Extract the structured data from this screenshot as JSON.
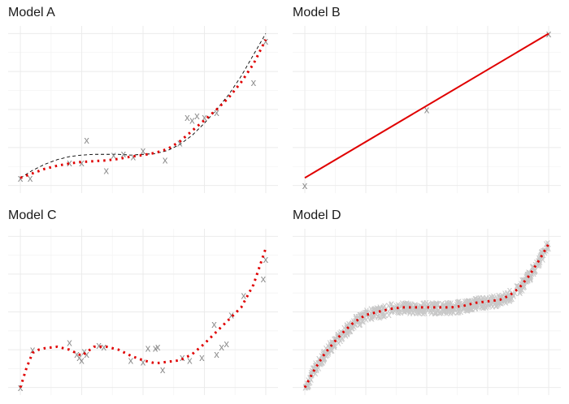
{
  "colors": {
    "points": "#8c8c8c",
    "points_dense": "#c8c8c8",
    "fit": "#e00000",
    "truth": "#000000",
    "grid": "#ebebeb"
  },
  "chart_data": [
    {
      "type": "scatter",
      "title": "Model A",
      "point_marker": "x",
      "xlim": [
        -0.05,
        1.05
      ],
      "ylim": [
        -0.05,
        1.05
      ],
      "grid": true,
      "points": {
        "x": [
          0.0,
          0.04,
          0.2,
          0.25,
          0.27,
          0.35,
          0.38,
          0.42,
          0.46,
          0.5,
          0.59,
          0.65,
          0.68,
          0.7,
          0.72,
          0.75,
          0.8,
          0.95,
          1.0
        ],
        "y": [
          0.05,
          0.05,
          0.15,
          0.15,
          0.3,
          0.1,
          0.2,
          0.21,
          0.19,
          0.23,
          0.17,
          0.28,
          0.45,
          0.43,
          0.46,
          0.45,
          0.48,
          0.68,
          0.95
        ]
      },
      "fitted_curve": {
        "x": [
          0.0,
          0.05,
          0.1,
          0.15,
          0.2,
          0.25,
          0.3,
          0.35,
          0.4,
          0.45,
          0.5,
          0.55,
          0.6,
          0.65,
          0.7,
          0.75,
          0.8,
          0.85,
          0.9,
          0.95,
          1.0
        ],
        "y": [
          0.05,
          0.08,
          0.11,
          0.13,
          0.145,
          0.155,
          0.16,
          0.165,
          0.175,
          0.19,
          0.2,
          0.215,
          0.24,
          0.29,
          0.36,
          0.43,
          0.5,
          0.58,
          0.68,
          0.8,
          0.96
        ]
      },
      "true_curve": {
        "x": [
          0.0,
          0.05,
          0.1,
          0.15,
          0.2,
          0.25,
          0.3,
          0.35,
          0.4,
          0.45,
          0.5,
          0.55,
          0.6,
          0.65,
          0.7,
          0.75,
          0.8,
          0.85,
          0.9,
          0.95,
          1.0
        ],
        "y": [
          0.05,
          0.1,
          0.14,
          0.17,
          0.19,
          0.2,
          0.205,
          0.205,
          0.205,
          0.2,
          0.205,
          0.21,
          0.23,
          0.27,
          0.33,
          0.41,
          0.5,
          0.6,
          0.72,
          0.86,
          1.0
        ]
      }
    },
    {
      "type": "scatter",
      "title": "Model B",
      "point_marker": "x",
      "xlim": [
        -0.05,
        1.05
      ],
      "ylim": [
        -0.05,
        1.05
      ],
      "grid": true,
      "points": {
        "x": [
          0.0,
          0.5,
          1.0
        ],
        "y": [
          0.0,
          0.5,
          1.0
        ]
      },
      "fitted_curve": {
        "x": [
          0.0,
          1.0
        ],
        "y": [
          0.05,
          1.0
        ]
      }
    },
    {
      "type": "scatter",
      "title": "Model C",
      "point_marker": "x",
      "xlim": [
        -0.05,
        1.05
      ],
      "ylim": [
        -0.05,
        1.05
      ],
      "grid": true,
      "points": {
        "x": [
          0.0,
          0.05,
          0.2,
          0.23,
          0.24,
          0.25,
          0.26,
          0.27,
          0.32,
          0.34,
          0.45,
          0.5,
          0.52,
          0.55,
          0.56,
          0.58,
          0.66,
          0.69,
          0.74,
          0.79,
          0.8,
          0.82,
          0.84,
          0.86,
          0.91,
          0.99,
          1.0
        ],
        "y": [
          0.0,
          0.25,
          0.3,
          0.22,
          0.2,
          0.18,
          0.24,
          0.22,
          0.28,
          0.27,
          0.18,
          0.17,
          0.26,
          0.26,
          0.27,
          0.12,
          0.2,
          0.18,
          0.2,
          0.42,
          0.22,
          0.27,
          0.29,
          0.48,
          0.61,
          0.72,
          0.85
        ]
      },
      "fitted_curve": {
        "x": [
          0.0,
          0.025,
          0.05,
          0.075,
          0.1,
          0.15,
          0.2,
          0.25,
          0.3,
          0.35,
          0.4,
          0.45,
          0.5,
          0.55,
          0.6,
          0.65,
          0.7,
          0.75,
          0.8,
          0.85,
          0.9,
          0.95,
          0.975,
          1.0
        ],
        "y": [
          0.0,
          0.13,
          0.23,
          0.25,
          0.26,
          0.27,
          0.25,
          0.21,
          0.27,
          0.27,
          0.25,
          0.21,
          0.18,
          0.16,
          0.17,
          0.18,
          0.22,
          0.29,
          0.37,
          0.45,
          0.53,
          0.68,
          0.8,
          0.92
        ]
      }
    },
    {
      "type": "scatter",
      "title": "Model D",
      "point_marker": "x",
      "xlim": [
        -0.05,
        1.05
      ],
      "ylim": [
        -0.05,
        1.05
      ],
      "grid": true,
      "points": {
        "x": [],
        "y": []
      },
      "fitted_curve": {
        "x": [
          0.0,
          0.04,
          0.08,
          0.12,
          0.16,
          0.2,
          0.25,
          0.3,
          0.35,
          0.4,
          0.45,
          0.5,
          0.55,
          0.6,
          0.65,
          0.7,
          0.75,
          0.8,
          0.84,
          0.88,
          0.92,
          0.96,
          1.0
        ],
        "y": [
          0.0,
          0.12,
          0.22,
          0.3,
          0.37,
          0.43,
          0.48,
          0.5,
          0.52,
          0.53,
          0.53,
          0.53,
          0.53,
          0.53,
          0.54,
          0.56,
          0.57,
          0.58,
          0.61,
          0.66,
          0.74,
          0.84,
          0.95
        ]
      }
    }
  ]
}
